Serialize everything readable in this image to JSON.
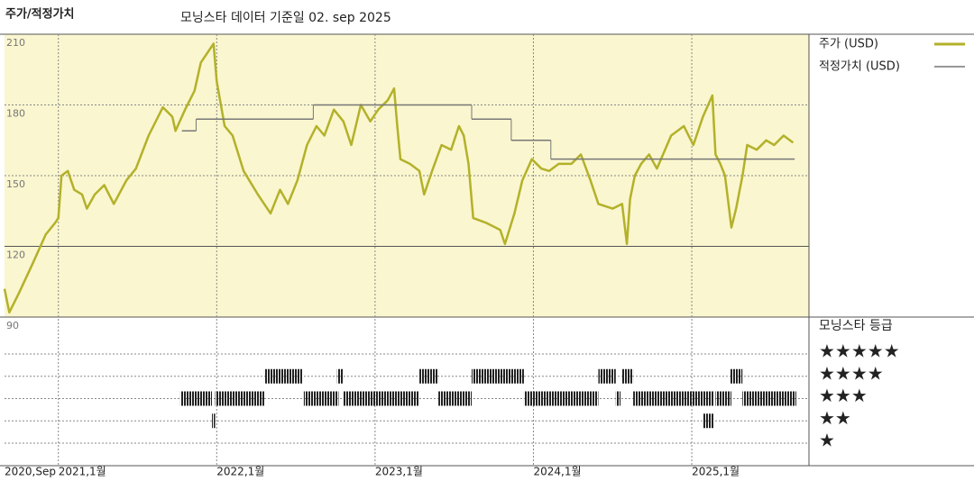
{
  "chart_data": {
    "type": "line",
    "label": "주가/적정가치",
    "title": "모닝스타 데이터 기준일 02. sep 2025",
    "xlim": [
      2020.66,
      2025.74
    ],
    "xticks": [
      {
        "value": 2020.66,
        "label": "2020,Sep"
      },
      {
        "value": 2021,
        "label": "2021,1월"
      },
      {
        "value": 2022,
        "label": "2022,1월"
      },
      {
        "value": 2023,
        "label": "2023,1월"
      },
      {
        "value": 2024,
        "label": "2024,1월"
      },
      {
        "value": 2025,
        "label": "2025,1월"
      }
    ],
    "ylim": [
      90,
      210
    ],
    "yticks": [
      90,
      120,
      150,
      180,
      210
    ],
    "grid": true,
    "series": [
      {
        "name": "주가 (USD)",
        "color": "#b3b12a",
        "x": [
          2020.66,
          2020.69,
          2020.75,
          2020.84,
          2020.92,
          2020.98,
          2021.0,
          2021.02,
          2021.06,
          2021.1,
          2021.15,
          2021.18,
          2021.23,
          2021.29,
          2021.35,
          2021.43,
          2021.49,
          2021.57,
          2021.66,
          2021.72,
          2021.74,
          2021.8,
          2021.86,
          2021.9,
          2021.94,
          2021.98,
          2022.0,
          2022.05,
          2022.1,
          2022.17,
          2022.26,
          2022.34,
          2022.4,
          2022.45,
          2022.51,
          2022.57,
          2022.63,
          2022.68,
          2022.74,
          2022.8,
          2022.85,
          2022.91,
          2022.97,
          2023.02,
          2023.08,
          2023.12,
          2023.14,
          2023.16,
          2023.22,
          2023.28,
          2023.31,
          2023.36,
          2023.42,
          2023.48,
          2023.53,
          2023.56,
          2023.59,
          2023.62,
          2023.7,
          2023.79,
          2023.82,
          2023.88,
          2023.93,
          2023.99,
          2024.05,
          2024.1,
          2024.16,
          2024.24,
          2024.3,
          2024.36,
          2024.41,
          2024.5,
          2024.56,
          2024.59,
          2024.61,
          2024.64,
          2024.68,
          2024.73,
          2024.78,
          2024.87,
          2024.95,
          2025.01,
          2025.07,
          2025.13,
          2025.15,
          2025.18,
          2025.21,
          2025.25,
          2025.28,
          2025.32,
          2025.35,
          2025.41,
          2025.47,
          2025.52,
          2025.58,
          2025.64
        ],
        "values": [
          102,
          92,
          100,
          113,
          125,
          130,
          132,
          150,
          152,
          144,
          142,
          136,
          142,
          146,
          138,
          148,
          153,
          167,
          179,
          175,
          169,
          178,
          186,
          198,
          202,
          206,
          190,
          171,
          167,
          152,
          142,
          134,
          144,
          138,
          148,
          163,
          171,
          167,
          178,
          173,
          163,
          180,
          173,
          178,
          182,
          187,
          171,
          157,
          155,
          152,
          142,
          152,
          163,
          161,
          171,
          167,
          155,
          132,
          130,
          127,
          121,
          134,
          148,
          157,
          153,
          152,
          155,
          155,
          159,
          148,
          138,
          136,
          138,
          121,
          140,
          150,
          155,
          159,
          153,
          167,
          171,
          163,
          175,
          184,
          159,
          155,
          150,
          128,
          136,
          150,
          163,
          161,
          165,
          163,
          167,
          164
        ]
      },
      {
        "name": "적정가치 (USD)",
        "color": "#777777",
        "x_start": [
          2021.78,
          2021.87,
          2022.61,
          2023.61,
          2023.86,
          2024.11
        ],
        "x_end": [
          2021.87,
          2022.61,
          2023.61,
          2023.86,
          2024.11,
          2025.65
        ],
        "values": [
          169,
          174,
          180,
          174,
          165,
          157
        ]
      }
    ],
    "rating_title": "모닝스타 등급",
    "rating_legend": [
      "★★★★★",
      "★★★★",
      "★★★",
      "★★",
      "★"
    ],
    "ratings": {
      "start": [
        2022.3,
        2022.76,
        2023.28,
        2023.61,
        2024.41,
        2024.56,
        2025.24,
        2021.77,
        2021.99,
        2022.55,
        2022.8,
        2023.4,
        2023.94,
        2024.52,
        2024.63,
        2025.15,
        2025.32,
        2021.97,
        2025.07
      ],
      "end": [
        2022.54,
        2022.8,
        2023.4,
        2023.94,
        2024.52,
        2024.63,
        2025.32,
        2021.97,
        2022.3,
        2022.77,
        2023.28,
        2023.61,
        2024.41,
        2024.55,
        2025.14,
        2025.25,
        2025.66,
        2021.99,
        2025.14
      ],
      "stars": [
        4,
        4,
        4,
        4,
        4,
        4,
        4,
        3,
        3,
        3,
        3,
        3,
        3,
        3,
        3,
        3,
        3,
        2,
        2
      ]
    }
  }
}
